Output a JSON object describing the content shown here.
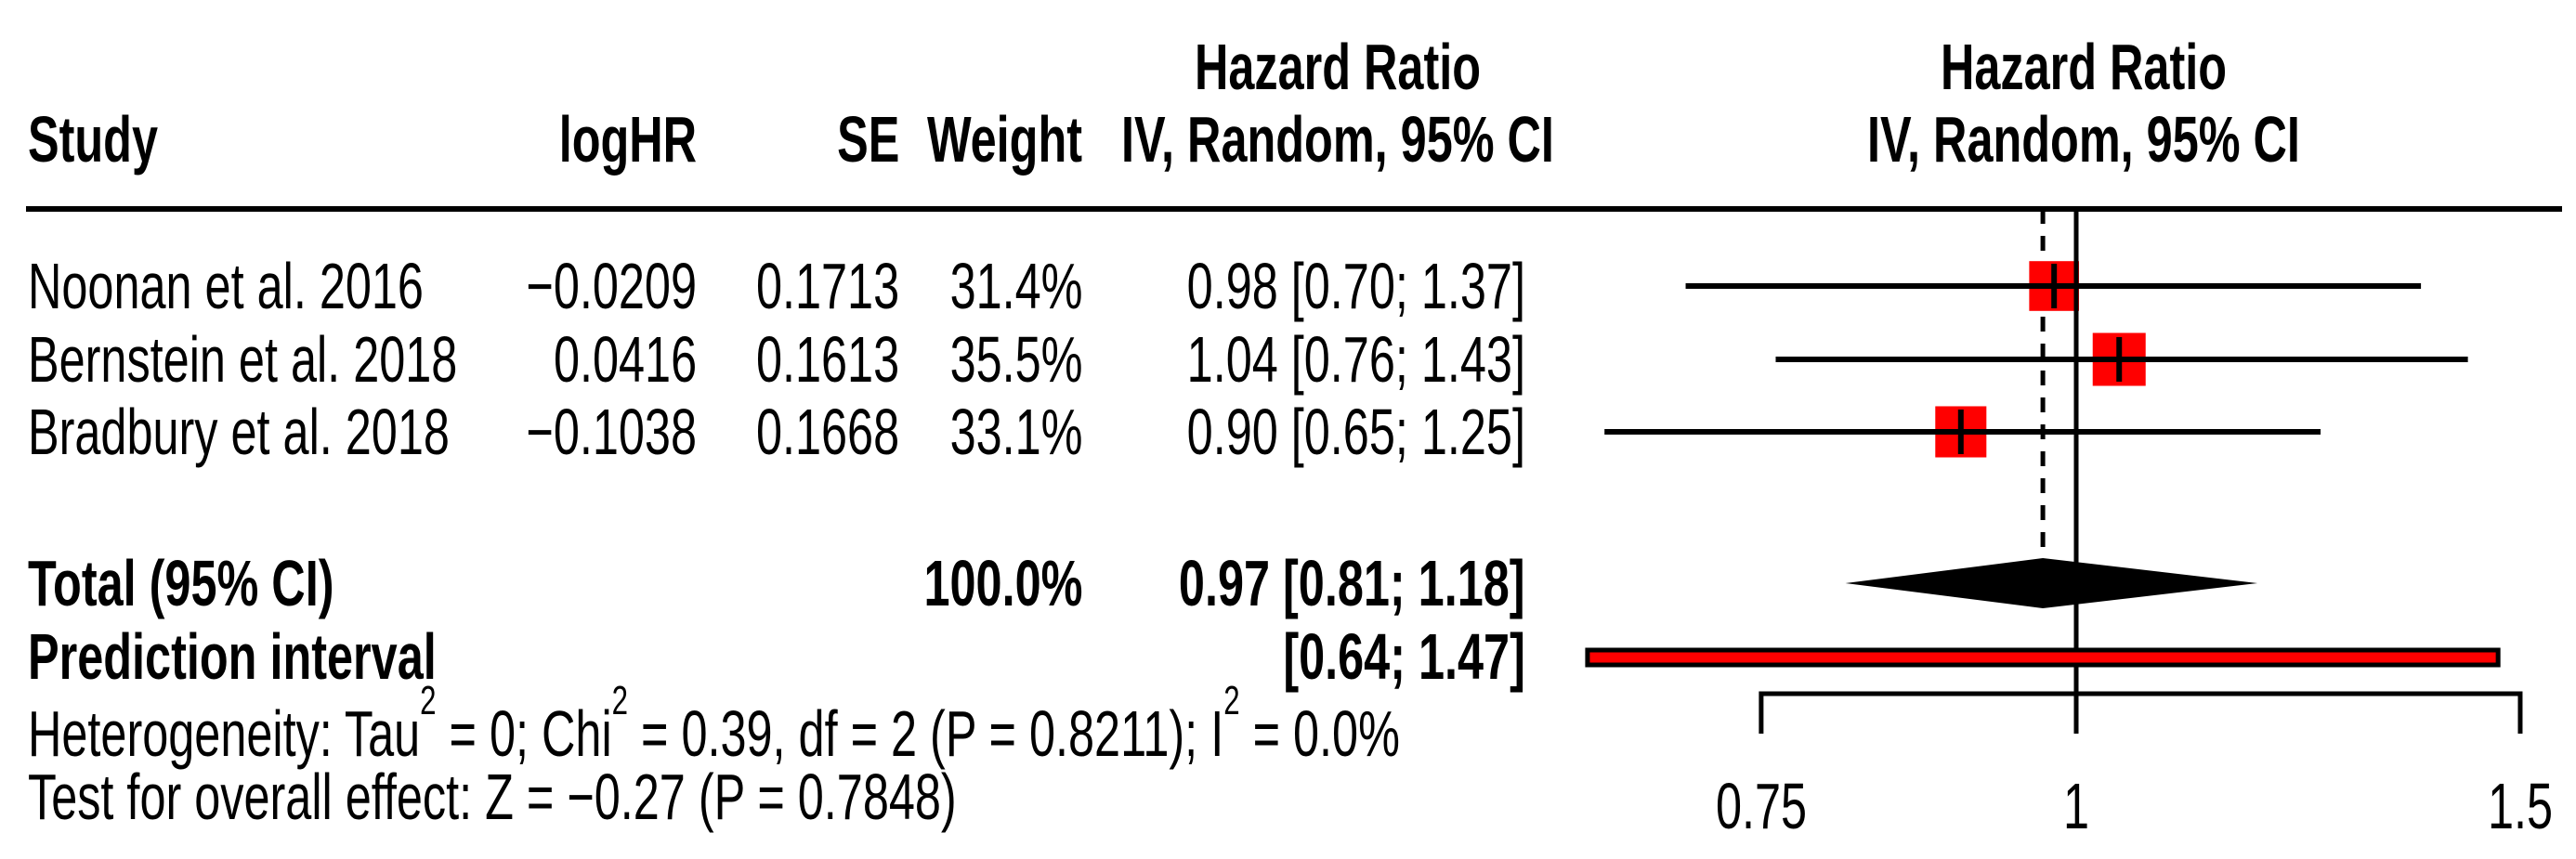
{
  "columns": {
    "study": "Study",
    "loghr": "logHR",
    "se": "SE",
    "weight": "Weight",
    "effect_title": "Hazard Ratio",
    "method": "IV, Random, 95% CI"
  },
  "plot_header": {
    "effect_title": "Hazard Ratio",
    "method": "IV, Random, 95% CI"
  },
  "footer": {
    "heterogeneity_segments": [
      {
        "text": "Heterogeneity: Tau"
      },
      {
        "sup": "2"
      },
      {
        "text": " = 0; Chi"
      },
      {
        "sup": "2"
      },
      {
        "text": " = 0.39, df = 2 (P = 0.8211); I"
      },
      {
        "sup": "2"
      },
      {
        "text": " = 0.0%"
      }
    ],
    "overall_effect_text": "Test for overall effect: Z = −0.27 (P = 0.7848)"
  },
  "colors": {
    "square": "#ff0000",
    "prediction_bar": "#ff0000",
    "diamond": "#000000",
    "line": "#000000",
    "text": "#000000",
    "background": "#ffffff"
  },
  "chart_data": {
    "type": "forest",
    "effect_measure": "Hazard Ratio",
    "model": "IV, Random, 95% CI",
    "x_scale": "log",
    "x_ticks": [
      0.75,
      1,
      1.5
    ],
    "x_tick_labels": [
      "0.75",
      "1",
      "1.5"
    ],
    "ref_line": 1,
    "pooled_dashed_line": 0.97,
    "studies": [
      {
        "name": "Noonan et al. 2016",
        "logHR": -0.0209,
        "logHR_text": "−0.0209",
        "SE": 0.1713,
        "SE_text": "0.1713",
        "weight_pct": 31.4,
        "weight_text": "31.4%",
        "HR": 0.98,
        "ci_low": 0.7,
        "ci_high": 1.37,
        "ci_text": "0.98 [0.70; 1.37]"
      },
      {
        "name": "Bernstein et al. 2018",
        "logHR": 0.0416,
        "logHR_text": "0.0416",
        "SE": 0.1613,
        "SE_text": "0.1613",
        "weight_pct": 35.5,
        "weight_text": "35.5%",
        "HR": 1.04,
        "ci_low": 0.76,
        "ci_high": 1.43,
        "ci_text": "1.04 [0.76; 1.43]"
      },
      {
        "name": "Bradbury et al. 2018",
        "logHR": -0.1038,
        "logHR_text": "−0.1038",
        "SE": 0.1668,
        "SE_text": "0.1668",
        "weight_pct": 33.1,
        "weight_text": "33.1%",
        "HR": 0.9,
        "ci_low": 0.65,
        "ci_high": 1.25,
        "ci_text": "0.90 [0.65; 1.25]"
      }
    ],
    "total": {
      "label": "Total (95% CI)",
      "weight_pct": 100.0,
      "weight_text": "100.0%",
      "HR": 0.97,
      "ci_low": 0.81,
      "ci_high": 1.18,
      "ci_text": "0.97 [0.81; 1.18]"
    },
    "prediction_interval": {
      "label": "Prediction interval",
      "ci_low": 0.64,
      "ci_high": 1.47,
      "ci_text": "[0.64; 1.47]"
    },
    "heterogeneity_text": "Heterogeneity: Tau2 = 0; Chi2 = 0.39, df = 2 (P = 0.8211); I2 = 0.0%",
    "overall_effect_text": "Test for overall effect: Z = −0.27 (P = 0.7848)"
  }
}
